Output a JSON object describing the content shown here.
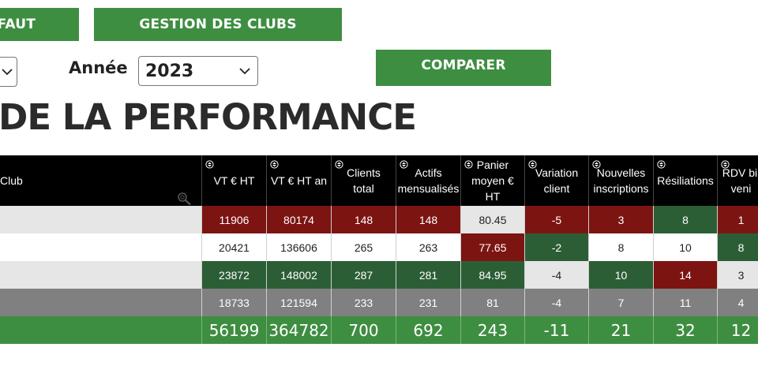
{
  "buttons": {
    "defaut": "FAUT",
    "gestion": "GESTION DES CLUBS",
    "comparer": "COMPARER"
  },
  "filters": {
    "year_label": "Année",
    "year_value": "2023"
  },
  "page_title": "DE LA PERFORMANCE",
  "table": {
    "columns": [
      "Club",
      "VT € HT",
      "VT € HT an",
      "Clients\ntotal",
      "Actifs\nmensualisés",
      "Panier\nmoyen €\nHT",
      "Variation\nclient",
      "Nouvelles\ninscriptions",
      "Résiliations",
      "RDV bil\nveni"
    ],
    "rows": [
      {
        "cells": [
          "",
          "11906",
          "80174",
          "148",
          "148",
          "80.45",
          "-5",
          "3",
          "8",
          "1"
        ],
        "styles": [
          "light",
          "red",
          "red",
          "red",
          "red",
          "light",
          "red",
          "red",
          "green",
          "red"
        ]
      },
      {
        "cells": [
          "",
          "20421",
          "136606",
          "265",
          "263",
          "77.65",
          "-2",
          "8",
          "10",
          "8"
        ],
        "styles": [
          "white",
          "white",
          "white",
          "white",
          "white",
          "red",
          "green",
          "white",
          "white",
          "green"
        ]
      },
      {
        "cells": [
          "",
          "23872",
          "148002",
          "287",
          "281",
          "84.95",
          "-4",
          "10",
          "14",
          "3"
        ],
        "styles": [
          "light",
          "green",
          "green",
          "green",
          "green",
          "green",
          "light",
          "green",
          "red",
          "light"
        ]
      },
      {
        "cells": [
          "",
          "18733",
          "121594",
          "233",
          "231",
          "81",
          "-4",
          "7",
          "11",
          "4"
        ],
        "styles": [
          "gray",
          "gray",
          "gray",
          "gray",
          "gray",
          "gray",
          "gray",
          "gray",
          "gray",
          "gray"
        ]
      }
    ],
    "totals": [
      "",
      "56199",
      "364782",
      "700",
      "692",
      "243",
      "-11",
      "21",
      "32",
      "12"
    ]
  },
  "colors": {
    "accent_green": "#3e8e41",
    "good": "#2c5e35",
    "bad": "#7c1412"
  },
  "icons": {
    "sort": "sort-arrows-icon",
    "zoom": "magnifier-icon",
    "chevron": "chevron-down-icon"
  }
}
